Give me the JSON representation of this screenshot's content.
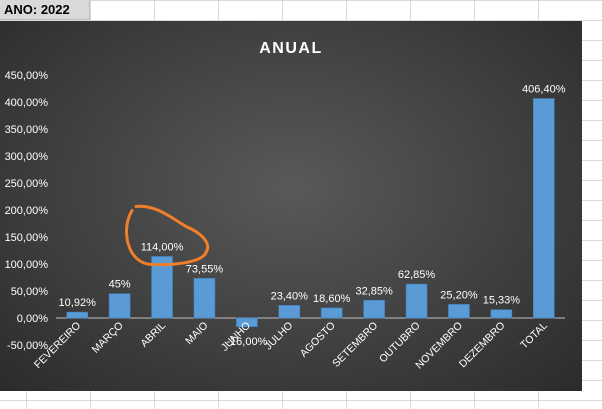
{
  "sheet": {
    "year_label": "ANO: 2022"
  },
  "chart_data": {
    "type": "bar",
    "title": "ANUAL",
    "categories": [
      "FEVEREIRO",
      "MARÇO",
      "ABRIL",
      "MAIO",
      "JUNHO",
      "JULHO",
      "AGOSTO",
      "SETEMBRO",
      "OUTUBRO",
      "NOVEMBRO",
      "DEZEMBRO",
      "TOTAL"
    ],
    "values": [
      10.92,
      45,
      114.0,
      73.55,
      -16.0,
      23.4,
      18.6,
      32.85,
      62.85,
      25.2,
      15.33,
      406.4
    ],
    "data_labels": [
      "10,92%",
      "45%",
      "114,00%",
      "73,55%",
      "-16,00%",
      "23,40%",
      "18,60%",
      "32,85%",
      "62,85%",
      "25,20%",
      "15,33%",
      "406,40%"
    ],
    "y_ticks": [
      "-50,00%",
      "0,00%",
      "50,00%",
      "100,00%",
      "150,00%",
      "200,00%",
      "250,00%",
      "300,00%",
      "350,00%",
      "400,00%",
      "450,00%"
    ],
    "ylim": [
      -50,
      450
    ],
    "grid": false,
    "legend": "none",
    "colors": {
      "bar": "#5b9bd5",
      "bar_edge": "#3f7fc0",
      "text": "#ffffff",
      "axis": "#bfbfbf",
      "annotation": "#f07f2b"
    },
    "annotation": {
      "shape": "hand-drawn circle",
      "target_category": "ABRIL"
    }
  }
}
